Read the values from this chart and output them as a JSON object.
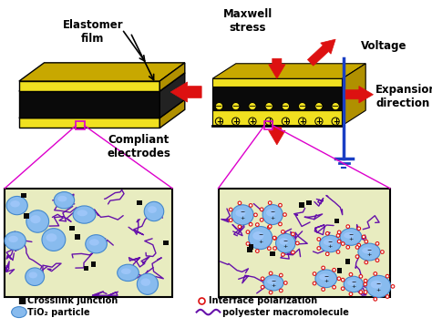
{
  "bg_color": "#ffffff",
  "yellow_color": "#f0e020",
  "dark_yellow": "#c8a800",
  "side_yellow": "#b09000",
  "black_color": "#0a0a0a",
  "red_color": "#dd1111",
  "blue_color": "#1a3fc4",
  "magenta_color": "#dd00cc",
  "tio2_fill": "#88bbee",
  "tio2_fill2": "#aaccff",
  "tio2_edge": "#4488cc",
  "micro_bg": "#e8ecc0",
  "crosslink_color": "#111111",
  "polymer_color": "#6611aa",
  "label_elastomer": "Elastomer\nfilm",
  "label_compliant": "Compliant\nelectrodes",
  "label_maxwell": "Maxwell\nstress",
  "label_voltage": "Voltage",
  "label_expansion": "Expansion\ndirection",
  "legend_crosslink": "Crosslink junction",
  "legend_interface": "Interface polarization",
  "legend_tio2": "TiO₂ particle",
  "legend_polymer": "polyester macromolecule"
}
